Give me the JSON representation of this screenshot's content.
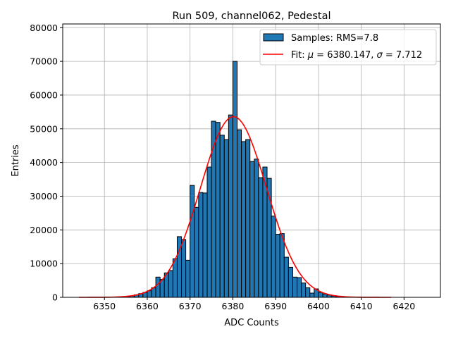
{
  "chart_data": {
    "type": "bar",
    "title": "Run 509, channel062, Pedestal",
    "xlabel": "ADC Counts",
    "ylabel": "Entries",
    "xlim": [
      6340.25,
      6428.5
    ],
    "ylim": [
      0,
      81100
    ],
    "grid": true,
    "legend_placement": "top-right",
    "xticks": [
      6350,
      6360,
      6370,
      6380,
      6390,
      6400,
      6410,
      6420
    ],
    "yticks": [
      0,
      10000,
      20000,
      30000,
      40000,
      50000,
      60000,
      70000,
      80000
    ],
    "bin_width": 1,
    "bins": [
      6355,
      6356,
      6357,
      6358,
      6359,
      6360,
      6361,
      6362,
      6363,
      6364,
      6365,
      6366,
      6367,
      6368,
      6369,
      6370,
      6371,
      6372,
      6373,
      6374,
      6375,
      6376,
      6377,
      6378,
      6379,
      6380,
      6381,
      6382,
      6383,
      6384,
      6385,
      6386,
      6387,
      6388,
      6389,
      6390,
      6391,
      6392,
      6393,
      6394,
      6395,
      6396,
      6397,
      6398,
      6399,
      6400,
      6401,
      6402,
      6403,
      6404
    ],
    "values": [
      200,
      400,
      750,
      1100,
      1450,
      1950,
      2850,
      6000,
      5300,
      7250,
      7950,
      11450,
      18000,
      17150,
      11000,
      33200,
      26700,
      31100,
      30950,
      38650,
      52250,
      51900,
      48100,
      46800,
      54100,
      70000,
      49700,
      46200,
      46800,
      40300,
      41000,
      35500,
      38650,
      35300,
      24100,
      18700,
      18900,
      11900,
      8900,
      6000,
      5850,
      4250,
      2850,
      1250,
      2500,
      1450,
      1000,
      700,
      400,
      200
    ],
    "bar_color": "#1f77b4",
    "bar_edge_color": "#000000",
    "fit": {
      "type": "gaussian",
      "mu": 6380.147,
      "sigma": 7.712,
      "amplitude": 53600,
      "x_range": [
        6344,
        6417
      ],
      "color": "#ff0000"
    },
    "legend": [
      {
        "label": "Samples: RMS=7.8",
        "kind": "patch"
      },
      {
        "label_prefix": "Fit: ",
        "mu_symbol": "μ",
        "mu_text": " = 6380.147, ",
        "sigma_symbol": "σ",
        "sigma_text": " = 7.712",
        "kind": "line"
      }
    ]
  }
}
